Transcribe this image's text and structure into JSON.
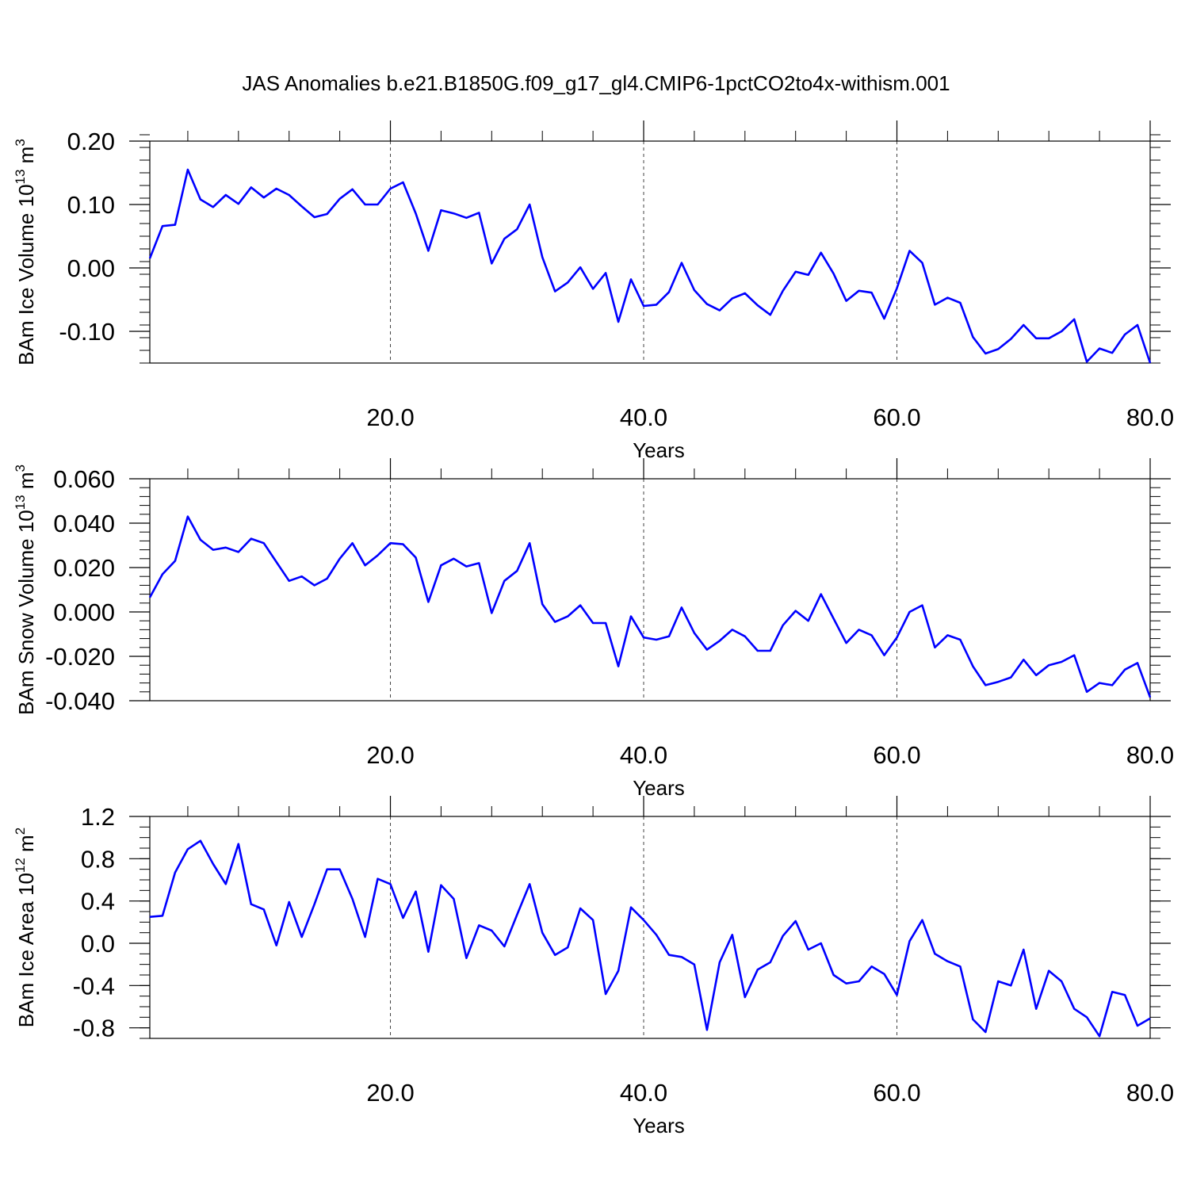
{
  "title": "JAS Anomalies b.e21.B1850G.f09_g17_gl4.CMIP6-1pctCO2to4x-withism.001",
  "line_color": "#0000ff",
  "chart_data": [
    {
      "type": "line",
      "ylabel_main": "BAm Ice Volume 10",
      "ylabel_exp": "13",
      "ylabel_unit": " m",
      "ylabel_unit_exp": "3",
      "xlabel": "Years",
      "xlim": [
        1,
        80
      ],
      "ylim": [
        -0.15,
        0.2
      ],
      "x_ticks": [
        20,
        40,
        60,
        80
      ],
      "x_tick_labels": [
        "20.0",
        "40.0",
        "60.0",
        "80.0"
      ],
      "y_ticks": [
        -0.1,
        0.0,
        0.1,
        0.2
      ],
      "y_tick_labels": [
        "-0.10",
        "0.00",
        "0.10",
        "0.20"
      ],
      "y_minor_step": 0.02,
      "grid": "vertical dashed at 20, 40, 60",
      "x": [
        1,
        2,
        3,
        4,
        5,
        6,
        7,
        8,
        9,
        10,
        11,
        12,
        13,
        14,
        15,
        16,
        17,
        18,
        19,
        20,
        21,
        22,
        23,
        24,
        25,
        26,
        27,
        28,
        29,
        30,
        31,
        32,
        33,
        34,
        35,
        36,
        37,
        38,
        39,
        40,
        41,
        42,
        43,
        44,
        45,
        46,
        47,
        48,
        49,
        50,
        51,
        52,
        53,
        54,
        55,
        56,
        57,
        58,
        59,
        60,
        61,
        62,
        63,
        64,
        65,
        66,
        67,
        68,
        69,
        70,
        71,
        72,
        73,
        74,
        75,
        76,
        77,
        78,
        79,
        80
      ],
      "series": [
        {
          "values": [
            0.015,
            0.066,
            0.068,
            0.155,
            0.108,
            0.096,
            0.115,
            0.101,
            0.127,
            0.111,
            0.125,
            0.115,
            0.097,
            0.08,
            0.085,
            0.109,
            0.124,
            0.1,
            0.1,
            0.125,
            0.135,
            0.086,
            0.027,
            0.091,
            0.086,
            0.079,
            0.087,
            0.007,
            0.046,
            0.061,
            0.1,
            0.017,
            -0.037,
            -0.023,
            0.001,
            -0.033,
            -0.008,
            -0.085,
            -0.018,
            -0.06,
            -0.058,
            -0.038,
            0.008,
            -0.035,
            -0.057,
            -0.067,
            -0.048,
            -0.04,
            -0.059,
            -0.074,
            -0.036,
            -0.006,
            -0.011,
            0.024,
            -0.009,
            -0.052,
            -0.036,
            -0.039,
            -0.08,
            -0.032,
            0.027,
            0.008,
            -0.058,
            -0.047,
            -0.055,
            -0.109,
            -0.135,
            -0.128,
            -0.112,
            -0.09,
            -0.111,
            -0.111,
            -0.1,
            -0.081,
            -0.148,
            -0.127,
            -0.134,
            -0.105,
            -0.09,
            -0.15
          ]
        }
      ]
    },
    {
      "type": "line",
      "ylabel_main": "BAm Snow Volume 10",
      "ylabel_exp": "13",
      "ylabel_unit": " m",
      "ylabel_unit_exp": "3",
      "xlabel": "Years",
      "xlim": [
        1,
        80
      ],
      "ylim": [
        -0.04,
        0.06
      ],
      "x_ticks": [
        20,
        40,
        60,
        80
      ],
      "x_tick_labels": [
        "20.0",
        "40.0",
        "60.0",
        "80.0"
      ],
      "y_ticks": [
        -0.04,
        -0.02,
        0.0,
        0.02,
        0.04,
        0.06
      ],
      "y_tick_labels": [
        "-0.040",
        "-0.020",
        "0.000",
        "0.020",
        "0.040",
        "0.060"
      ],
      "y_minor_step": 0.004,
      "grid": "vertical dashed at 20, 40, 60",
      "x": [
        1,
        2,
        3,
        4,
        5,
        6,
        7,
        8,
        9,
        10,
        11,
        12,
        13,
        14,
        15,
        16,
        17,
        18,
        19,
        20,
        21,
        22,
        23,
        24,
        25,
        26,
        27,
        28,
        29,
        30,
        31,
        32,
        33,
        34,
        35,
        36,
        37,
        38,
        39,
        40,
        41,
        42,
        43,
        44,
        45,
        46,
        47,
        48,
        49,
        50,
        51,
        52,
        53,
        54,
        55,
        56,
        57,
        58,
        59,
        60,
        61,
        62,
        63,
        64,
        65,
        66,
        67,
        68,
        69,
        70,
        71,
        72,
        73,
        74,
        75,
        76,
        77,
        78,
        79,
        80
      ],
      "series": [
        {
          "values": [
            0.0065,
            0.017,
            0.023,
            0.043,
            0.0325,
            0.028,
            0.029,
            0.027,
            0.033,
            0.031,
            0.0225,
            0.014,
            0.016,
            0.012,
            0.015,
            0.024,
            0.031,
            0.021,
            0.0255,
            0.031,
            0.0305,
            0.0245,
            0.0045,
            0.021,
            0.024,
            0.0205,
            0.022,
            -0.0005,
            0.014,
            0.0185,
            0.031,
            0.0035,
            -0.0045,
            -0.002,
            0.003,
            -0.005,
            -0.005,
            -0.0245,
            -0.002,
            -0.0115,
            -0.0125,
            -0.011,
            0.002,
            -0.0095,
            -0.017,
            -0.013,
            -0.008,
            -0.011,
            -0.0175,
            -0.0175,
            -0.006,
            0.0005,
            -0.004,
            0.008,
            -0.003,
            -0.014,
            -0.008,
            -0.0105,
            -0.0195,
            -0.0115,
            0.0,
            0.003,
            -0.016,
            -0.0105,
            -0.0125,
            -0.0245,
            -0.033,
            -0.0315,
            -0.0295,
            -0.0215,
            -0.0285,
            -0.024,
            -0.0225,
            -0.0195,
            -0.036,
            -0.032,
            -0.033,
            -0.026,
            -0.023,
            -0.0385
          ]
        }
      ]
    },
    {
      "type": "line",
      "ylabel_main": "BAm Ice Area 10",
      "ylabel_exp": "12",
      "ylabel_unit": " m",
      "ylabel_unit_exp": "2",
      "xlabel": "Years",
      "xlim": [
        1,
        80
      ],
      "ylim": [
        -0.9,
        1.2
      ],
      "x_ticks": [
        20,
        40,
        60,
        80
      ],
      "x_tick_labels": [
        "20.0",
        "40.0",
        "60.0",
        "80.0"
      ],
      "y_ticks": [
        -0.8,
        -0.4,
        0.0,
        0.4,
        0.8,
        1.2
      ],
      "y_tick_labels": [
        "-0.8",
        "-0.4",
        "0.0",
        "0.4",
        "0.8",
        "1.2"
      ],
      "y_minor_step": 0.1,
      "grid": "vertical dashed at 20, 40, 60",
      "x": [
        1,
        2,
        3,
        4,
        5,
        6,
        7,
        8,
        9,
        10,
        11,
        12,
        13,
        14,
        15,
        16,
        17,
        18,
        19,
        20,
        21,
        22,
        23,
        24,
        25,
        26,
        27,
        28,
        29,
        30,
        31,
        32,
        33,
        34,
        35,
        36,
        37,
        38,
        39,
        40,
        41,
        42,
        43,
        44,
        45,
        46,
        47,
        48,
        49,
        50,
        51,
        52,
        53,
        54,
        55,
        56,
        57,
        58,
        59,
        60,
        61,
        62,
        63,
        64,
        65,
        66,
        67,
        68,
        69,
        70,
        71,
        72,
        73,
        74,
        75,
        76,
        77,
        78,
        79,
        80
      ],
      "series": [
        {
          "values": [
            0.25,
            0.26,
            0.67,
            0.89,
            0.97,
            0.75,
            0.56,
            0.94,
            0.37,
            0.32,
            -0.02,
            0.39,
            0.06,
            0.37,
            0.7,
            0.7,
            0.42,
            0.06,
            0.61,
            0.56,
            0.24,
            0.49,
            -0.08,
            0.55,
            0.42,
            -0.14,
            0.17,
            0.12,
            -0.03,
            0.27,
            0.56,
            0.1,
            -0.11,
            -0.04,
            0.33,
            0.22,
            -0.48,
            -0.26,
            0.34,
            0.22,
            0.08,
            -0.11,
            -0.13,
            -0.2,
            -0.82,
            -0.18,
            0.08,
            -0.51,
            -0.25,
            -0.18,
            0.07,
            0.21,
            -0.06,
            0.0,
            -0.3,
            -0.38,
            -0.36,
            -0.22,
            -0.29,
            -0.49,
            0.02,
            0.22,
            -0.1,
            -0.17,
            -0.22,
            -0.72,
            -0.84,
            -0.36,
            -0.4,
            -0.06,
            -0.62,
            -0.26,
            -0.36,
            -0.62,
            -0.7,
            -0.88,
            -0.46,
            -0.49,
            -0.78,
            -0.71
          ]
        }
      ]
    }
  ]
}
